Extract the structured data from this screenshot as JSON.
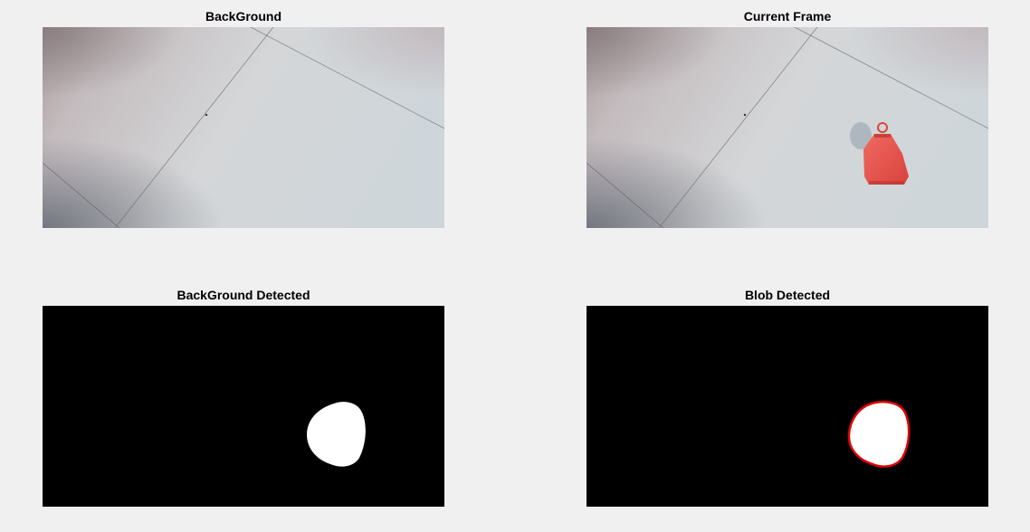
{
  "figure": {
    "panels": [
      {
        "id": "background",
        "title": "BackGround"
      },
      {
        "id": "current-frame",
        "title": "Current Frame"
      },
      {
        "id": "background-detected",
        "title": "BackGround Detected"
      },
      {
        "id": "blob-detected",
        "title": "Blob Detected"
      }
    ],
    "colors": {
      "figure_bg": "#f0f0f0",
      "mask_bg": "#000000",
      "blob_fill": "#ffffff",
      "blob_outline": "#e00000",
      "object": "#e8504a",
      "floor": "#d3d4d6"
    }
  }
}
